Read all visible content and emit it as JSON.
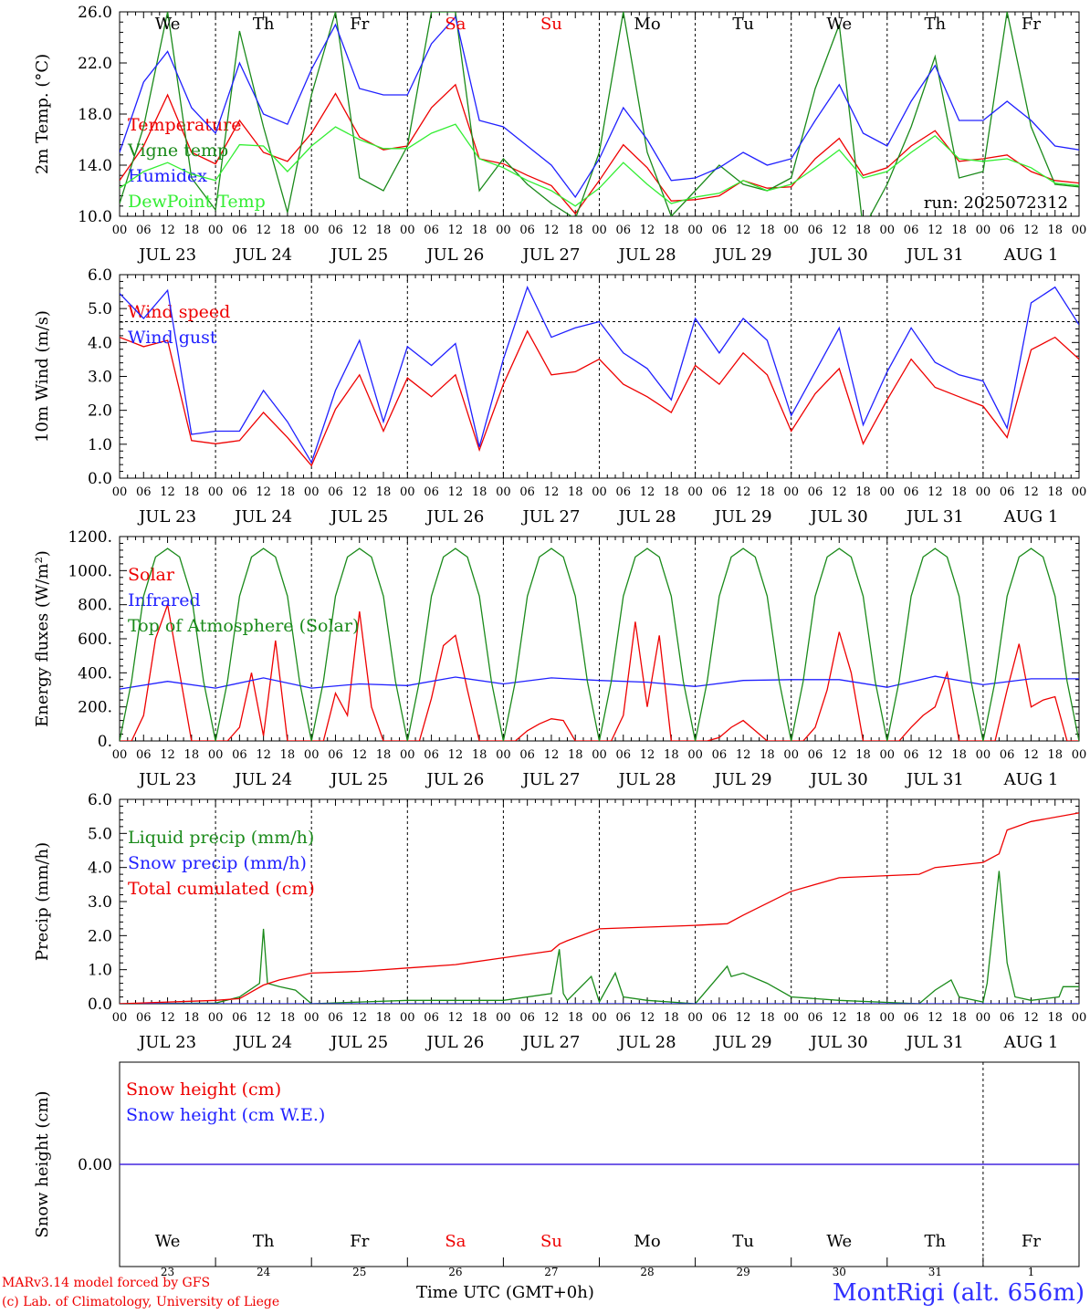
{
  "footer": {
    "model": "MARv3.14 model forced by GFS",
    "lab": "(c) Lab. of Climatology, University of Liege",
    "time_label": "Time UTC (GMT+0h)",
    "station": "MontRigi (alt. 656m)"
  },
  "days": {
    "weekday": [
      "We",
      "Th",
      "Fr",
      "Sa",
      "Su",
      "Mo",
      "Tu",
      "We",
      "Th",
      "Fr"
    ],
    "weekday_colors": [
      "#000",
      "#000",
      "#000",
      "#e00",
      "#e00",
      "#000",
      "#000",
      "#000",
      "#000",
      "#000"
    ],
    "date_labels": [
      "JUL 23",
      "JUL 24",
      "JUL 25",
      "JUL 26",
      "JUL 27",
      "JUL 28",
      "JUL 29",
      "JUL 30",
      "JUL 31",
      "AUG  1"
    ],
    "day_numbers": [
      "23",
      "24",
      "25",
      "26",
      "27",
      "28",
      "29",
      "30",
      "31",
      "1"
    ],
    "hour_ticks": [
      "00",
      "06",
      "12",
      "18"
    ],
    "end_tick": "00"
  },
  "chart_data": [
    {
      "type": "line",
      "ylabel": "2m Temp. (°C)",
      "ylim": [
        10.0,
        26.0
      ],
      "yticks": [
        "10.0",
        "14.0",
        "18.0",
        "22.0",
        "26.0"
      ],
      "run_label": "run: 2025072312",
      "x_unit": "hours since JUL 23 00 UTC",
      "series": [
        {
          "name": "Temperature",
          "color": "#e00",
          "x": [
            0,
            6,
            12,
            18,
            24,
            30,
            36,
            42,
            48,
            54,
            60,
            66,
            72,
            78,
            84,
            90,
            96,
            102,
            108,
            114,
            120,
            126,
            132,
            138,
            144,
            150,
            156,
            162,
            168,
            174,
            180,
            186,
            192,
            198,
            204,
            210,
            216,
            222,
            228,
            234,
            240
          ],
          "values": [
            12.8,
            15.5,
            19.5,
            15.0,
            14.1,
            17.5,
            15.0,
            14.3,
            16.5,
            19.6,
            16.2,
            15.2,
            15.5,
            18.5,
            20.3,
            14.5,
            14.1,
            13.2,
            12.4,
            10.2,
            12.8,
            15.6,
            13.8,
            11.2,
            11.3,
            11.6,
            12.8,
            12.2,
            12.3,
            14.5,
            16.1,
            13.2,
            13.8,
            15.5,
            16.7,
            14.3,
            14.5,
            14.8,
            13.5,
            12.8,
            12.6
          ]
        },
        {
          "name": "Vigne temp",
          "color": "#1a8a1a",
          "x": [
            0,
            6,
            12,
            18,
            24,
            30,
            36,
            42,
            48,
            54,
            60,
            66,
            72,
            78,
            84,
            90,
            96,
            102,
            108,
            114,
            120,
            126,
            132,
            138,
            144,
            150,
            156,
            162,
            168,
            174,
            180,
            186,
            192,
            198,
            204,
            210,
            216,
            222,
            228,
            234,
            240
          ],
          "values": [
            11.0,
            17.0,
            26.0,
            13.0,
            10.5,
            24.5,
            17.0,
            10.3,
            19.5,
            26.0,
            13.0,
            12.0,
            15.5,
            26.0,
            26.0,
            12.0,
            14.5,
            12.5,
            11.0,
            9.8,
            15.0,
            26.0,
            15.0,
            10.0,
            12.0,
            14.0,
            12.5,
            12.0,
            13.0,
            20.0,
            25.0,
            9.0,
            12.5,
            17.0,
            22.5,
            13.0,
            13.5,
            26.0,
            17.0,
            12.5,
            12.3
          ]
        },
        {
          "name": "Humidex",
          "color": "#2020ff",
          "x": [
            0,
            6,
            12,
            18,
            24,
            30,
            36,
            42,
            48,
            54,
            60,
            66,
            72,
            78,
            84,
            90,
            96,
            102,
            108,
            114,
            120,
            126,
            132,
            138,
            144,
            150,
            156,
            162,
            168,
            174,
            180,
            186,
            192,
            198,
            204,
            210,
            216,
            222,
            228,
            234,
            240
          ],
          "values": [
            15.0,
            20.5,
            22.9,
            18.5,
            16.5,
            22.0,
            18.0,
            17.2,
            21.5,
            25.0,
            20.0,
            19.5,
            19.5,
            23.5,
            25.6,
            17.5,
            17.0,
            15.5,
            14.0,
            11.5,
            14.5,
            18.5,
            16.0,
            12.8,
            13.0,
            13.8,
            15.0,
            14.0,
            14.5,
            17.5,
            20.3,
            16.5,
            15.5,
            19.0,
            21.8,
            17.5,
            17.5,
            19.0,
            17.5,
            15.5,
            15.2
          ]
        },
        {
          "name": "DewPoint Temp",
          "color": "#33ee33",
          "x": [
            0,
            6,
            12,
            18,
            24,
            30,
            36,
            42,
            48,
            54,
            60,
            66,
            72,
            78,
            84,
            90,
            96,
            102,
            108,
            114,
            120,
            126,
            132,
            138,
            144,
            150,
            156,
            162,
            168,
            174,
            180,
            186,
            192,
            198,
            204,
            210,
            216,
            222,
            228,
            234,
            240
          ],
          "values": [
            12.2,
            13.5,
            14.2,
            13.3,
            12.8,
            15.6,
            15.5,
            13.5,
            15.5,
            17.0,
            16.0,
            15.3,
            15.3,
            16.5,
            17.2,
            14.5,
            13.8,
            12.8,
            12.0,
            10.8,
            12.2,
            14.2,
            12.5,
            11.0,
            11.5,
            11.8,
            12.8,
            12.0,
            12.5,
            13.8,
            15.2,
            13.0,
            13.5,
            15.0,
            16.3,
            14.5,
            14.3,
            14.5,
            13.8,
            12.6,
            12.4
          ]
        }
      ]
    },
    {
      "type": "line",
      "ylabel": "10m Wind (m/s)",
      "ylim": [
        0.0,
        6.5
      ],
      "yticks": [
        "0.0",
        "1.0",
        "2.0",
        "3.0",
        "4.0",
        "5.0",
        "6.0"
      ],
      "refline": 5.0,
      "x_unit": "hours since JUL 23 00 UTC",
      "series": [
        {
          "name": "Wind speed",
          "color": "#e00",
          "x": [
            0,
            6,
            12,
            18,
            24,
            30,
            36,
            42,
            48,
            54,
            60,
            66,
            72,
            78,
            84,
            90,
            96,
            102,
            108,
            114,
            120,
            126,
            132,
            138,
            144,
            150,
            156,
            162,
            168,
            174,
            180,
            186,
            192,
            198,
            204,
            210,
            216,
            222,
            228,
            234,
            240
          ],
          "values": [
            4.5,
            4.2,
            4.4,
            1.2,
            1.1,
            1.2,
            2.1,
            1.3,
            0.4,
            2.2,
            3.3,
            1.5,
            3.2,
            2.6,
            3.3,
            0.9,
            3.0,
            4.7,
            3.3,
            3.4,
            3.8,
            3.0,
            2.6,
            2.1,
            3.6,
            3.0,
            4.0,
            3.3,
            1.5,
            2.7,
            3.5,
            1.1,
            2.5,
            3.8,
            2.9,
            2.6,
            2.3,
            1.3,
            4.1,
            4.5,
            3.8
          ]
        },
        {
          "name": "Wind gust",
          "color": "#2020ff",
          "x": [
            0,
            6,
            12,
            18,
            24,
            30,
            36,
            42,
            48,
            54,
            60,
            66,
            72,
            78,
            84,
            90,
            96,
            102,
            108,
            114,
            120,
            126,
            132,
            138,
            144,
            150,
            156,
            162,
            168,
            174,
            180,
            186,
            192,
            198,
            204,
            210,
            216,
            222,
            228,
            234,
            240
          ],
          "values": [
            5.9,
            5.1,
            6.0,
            1.4,
            1.5,
            1.5,
            2.8,
            1.8,
            0.5,
            2.8,
            4.4,
            1.8,
            4.2,
            3.6,
            4.3,
            1.0,
            3.8,
            6.1,
            4.5,
            4.8,
            5.0,
            4.0,
            3.5,
            2.5,
            5.1,
            4.0,
            5.1,
            4.4,
            2.0,
            3.4,
            4.8,
            1.7,
            3.4,
            4.8,
            3.7,
            3.3,
            3.1,
            1.6,
            5.6,
            6.1,
            4.9
          ]
        }
      ]
    },
    {
      "type": "line",
      "ylabel": "Energy fluxes (W/m²)",
      "ylim": [
        0,
        1200
      ],
      "yticks": [
        "0.",
        "200.",
        "400.",
        "600.",
        "800.",
        "1000.",
        "1200."
      ],
      "x_unit": "hours since JUL 23 00 UTC",
      "series": [
        {
          "name": "Solar",
          "color": "#e00",
          "x": [
            0,
            3,
            6,
            9,
            12,
            15,
            18,
            24,
            27,
            30,
            33,
            36,
            39,
            42,
            48,
            51,
            54,
            57,
            60,
            63,
            66,
            72,
            75,
            78,
            81,
            84,
            87,
            90,
            96,
            99,
            102,
            105,
            108,
            111,
            114,
            120,
            123,
            126,
            129,
            132,
            135,
            138,
            144,
            147,
            150,
            153,
            156,
            159,
            162,
            168,
            171,
            174,
            177,
            180,
            183,
            186,
            192,
            195,
            198,
            201,
            204,
            207,
            210,
            216,
            219,
            222,
            225,
            228,
            231,
            234,
            237,
            240
          ],
          "values": [
            0,
            0,
            150,
            600,
            800,
            400,
            0,
            0,
            0,
            80,
            400,
            30,
            590,
            0,
            0,
            0,
            280,
            150,
            760,
            200,
            0,
            0,
            0,
            250,
            560,
            620,
            300,
            0,
            0,
            0,
            60,
            100,
            130,
            120,
            0,
            0,
            0,
            150,
            700,
            200,
            620,
            0,
            0,
            0,
            20,
            80,
            120,
            60,
            0,
            0,
            0,
            80,
            300,
            640,
            400,
            0,
            0,
            0,
            80,
            150,
            200,
            400,
            0,
            0,
            0,
            300,
            570,
            200,
            240,
            260,
            0,
            0
          ]
        },
        {
          "name": "Infrared",
          "color": "#2020ff",
          "x": [
            0,
            12,
            24,
            36,
            48,
            60,
            72,
            84,
            96,
            108,
            120,
            132,
            144,
            156,
            168,
            180,
            192,
            204,
            216,
            228,
            240
          ],
          "values": [
            305,
            350,
            310,
            370,
            310,
            335,
            325,
            375,
            335,
            370,
            355,
            345,
            320,
            355,
            360,
            360,
            315,
            380,
            330,
            365,
            365
          ]
        },
        {
          "name": "Top of Atmosphere (Solar)",
          "color": "#1a8a1a",
          "x": [
            0,
            3,
            6,
            9,
            12,
            15,
            18,
            21,
            24
          ],
          "values": [
            0,
            350,
            850,
            1080,
            1130,
            1080,
            850,
            350,
            0
          ],
          "periodic_hours": 24
        }
      ]
    },
    {
      "type": "line",
      "ylabel": "Precip (mm/h)",
      "ylim": [
        0.0,
        6.0
      ],
      "yticks": [
        "0.0",
        "1.0",
        "2.0",
        "3.0",
        "4.0",
        "5.0",
        "6.0"
      ],
      "x_unit": "hours since JUL 23 00 UTC",
      "series": [
        {
          "name": "Liquid precip (mm/h)",
          "color": "#1a8a1a",
          "x": [
            0,
            24,
            30,
            35,
            36,
            37,
            40,
            44,
            48,
            60,
            72,
            96,
            108,
            110,
            111,
            112,
            118,
            120,
            124,
            126,
            132,
            144,
            152,
            153,
            156,
            162,
            168,
            180,
            200,
            204,
            208,
            210,
            216,
            217,
            220,
            222,
            224,
            228,
            235,
            236,
            240
          ],
          "values": [
            0,
            0.02,
            0.2,
            0.6,
            2.2,
            0.6,
            0.5,
            0.4,
            0,
            0.05,
            0.1,
            0.1,
            0.3,
            1.6,
            0.3,
            0.1,
            0.8,
            0.05,
            0.9,
            0.2,
            0.1,
            0,
            1.1,
            0.8,
            0.9,
            0.6,
            0.2,
            0.1,
            0,
            0.4,
            0.7,
            0.2,
            0.05,
            0.6,
            3.9,
            1.2,
            0.2,
            0.1,
            0.2,
            0.5,
            0.5
          ]
        },
        {
          "name": "Snow precip (mm/h)",
          "color": "#2020ff",
          "x": [
            0,
            240
          ],
          "values": [
            0,
            0
          ]
        },
        {
          "name": "Total cumulated (cm)",
          "color": "#e00",
          "x": [
            0,
            24,
            30,
            36,
            40,
            48,
            60,
            72,
            84,
            96,
            108,
            110,
            112,
            120,
            144,
            152,
            156,
            168,
            180,
            200,
            204,
            216,
            220,
            222,
            228,
            240
          ],
          "values": [
            0,
            0.1,
            0.15,
            0.55,
            0.7,
            0.9,
            0.95,
            1.05,
            1.15,
            1.35,
            1.55,
            1.75,
            1.85,
            2.2,
            2.3,
            2.35,
            2.6,
            3.3,
            3.7,
            3.8,
            4.0,
            4.15,
            4.4,
            5.1,
            5.35,
            5.6
          ]
        }
      ]
    },
    {
      "type": "line",
      "ylabel": "Snow height (cm)",
      "yticks": [
        "0.00"
      ],
      "x_unit": "hours since JUL 23 00 UTC",
      "series": [
        {
          "name": "Snow height (cm)",
          "color": "#e00",
          "x": [
            0,
            240
          ],
          "values": [
            0,
            0
          ]
        },
        {
          "name": "Snow height (cm W.E.)",
          "color": "#2020ff",
          "x": [
            0,
            240
          ],
          "values": [
            0,
            0
          ]
        }
      ]
    }
  ]
}
